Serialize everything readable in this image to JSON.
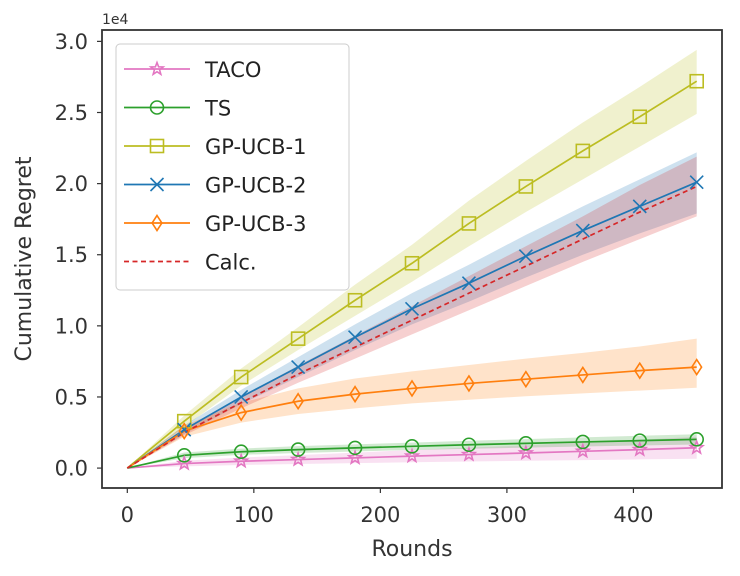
{
  "chart_data": {
    "type": "line",
    "xlabel": "Rounds",
    "ylabel": "Cumulative Regret",
    "y_scale_label": "1e4",
    "y_scale": 10000,
    "xlim": [
      -20,
      470
    ],
    "ylim": [
      -1400,
      30800
    ],
    "xticks": [
      0,
      100,
      200,
      300,
      400
    ],
    "xtick_labels": [
      "0",
      "100",
      "200",
      "300",
      "400"
    ],
    "yticks": [
      0,
      5000,
      10000,
      15000,
      20000,
      25000,
      30000
    ],
    "ytick_labels": [
      "0.0",
      "0.5",
      "1.0",
      "1.5",
      "2.0",
      "2.5",
      "3.0"
    ],
    "grid": false,
    "legend_position": "top-left",
    "x": [
      0,
      45,
      90,
      135,
      180,
      225,
      270,
      315,
      360,
      405,
      450
    ],
    "series": [
      {
        "name": "TACO",
        "color": "#e377c2",
        "marker": "star",
        "values": [
          0,
          320,
          480,
          600,
          720,
          840,
          950,
          1060,
          1180,
          1300,
          1430
        ],
        "lower": [
          0,
          120,
          220,
          290,
          350,
          410,
          460,
          520,
          560,
          610,
          660
        ],
        "upper": [
          0,
          520,
          740,
          910,
          1090,
          1270,
          1440,
          1600,
          1800,
          1990,
          2200
        ]
      },
      {
        "name": "TS",
        "color": "#2ca02c",
        "marker": "circle",
        "values": [
          0,
          900,
          1150,
          1300,
          1420,
          1530,
          1640,
          1740,
          1840,
          1930,
          2020
        ],
        "lower": [
          0,
          700,
          930,
          1060,
          1170,
          1270,
          1360,
          1440,
          1520,
          1590,
          1660
        ],
        "upper": [
          0,
          1100,
          1370,
          1540,
          1670,
          1790,
          1920,
          2040,
          2160,
          2270,
          2380
        ]
      },
      {
        "name": "GP-UCB-1",
        "color": "#bcbd22",
        "marker": "square",
        "values": [
          0,
          3300,
          6400,
          9100,
          11800,
          14400,
          17200,
          19800,
          22300,
          24700,
          27200
        ],
        "lower": [
          0,
          2900,
          5800,
          8300,
          10700,
          13100,
          15600,
          18000,
          20300,
          22600,
          24900
        ],
        "upper": [
          0,
          3700,
          7000,
          9900,
          12900,
          15700,
          18800,
          21600,
          24300,
          26800,
          29400
        ]
      },
      {
        "name": "GP-UCB-2",
        "color": "#1f77b4",
        "marker": "x",
        "values": [
          0,
          2700,
          5000,
          7100,
          9200,
          11200,
          13000,
          14900,
          16700,
          18400,
          20100
        ],
        "lower": [
          0,
          2400,
          4500,
          6400,
          8300,
          10100,
          11700,
          13400,
          15000,
          16500,
          17900
        ],
        "upper": [
          0,
          3000,
          5500,
          7800,
          10100,
          12300,
          14300,
          16400,
          18400,
          20300,
          22200
        ]
      },
      {
        "name": "GP-UCB-3",
        "color": "#ff7f0e",
        "marker": "diamond",
        "values": [
          0,
          2600,
          3900,
          4700,
          5200,
          5600,
          5950,
          6250,
          6550,
          6850,
          7100
        ],
        "lower": [
          0,
          2200,
          3200,
          3800,
          4200,
          4550,
          4800,
          5050,
          5250,
          5450,
          5650
        ],
        "upper": [
          0,
          3000,
          4600,
          5600,
          6300,
          6800,
          7250,
          7700,
          8100,
          8550,
          9100
        ]
      },
      {
        "name": "Calc.",
        "color": "#d62728",
        "marker": "none",
        "dashed": true,
        "values": [
          0,
          2500,
          4600,
          6600,
          8500,
          10400,
          12300,
          14200,
          16100,
          18000,
          19800
        ],
        "lower": [
          0,
          2300,
          4200,
          6000,
          7700,
          9400,
          11100,
          12800,
          14500,
          16100,
          17700
        ],
        "upper": [
          0,
          2700,
          5000,
          7200,
          9300,
          11400,
          13500,
          15600,
          17700,
          19900,
          21900
        ]
      }
    ]
  }
}
